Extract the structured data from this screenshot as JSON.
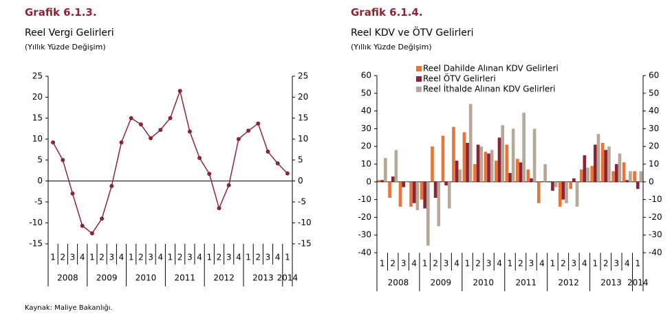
{
  "chart_data": [
    {
      "type": "line",
      "title": "Grafik 6.1.3.",
      "subtitle": "Reel Vergi Gelirleri",
      "note": "(Yıllık Yüzde Değişim)",
      "categories": [
        "1",
        "2",
        "3",
        "4",
        "1",
        "2",
        "3",
        "4",
        "1",
        "2",
        "3",
        "4",
        "1",
        "2",
        "3",
        "4",
        "1",
        "2",
        "3",
        "4",
        "1",
        "2",
        "3",
        "4",
        "1"
      ],
      "groups": [
        "2008",
        "2009",
        "2010",
        "2011",
        "2012",
        "2013",
        "2014"
      ],
      "values": [
        9.2,
        5,
        -3,
        -10.7,
        -12.5,
        -9,
        -1.2,
        9.2,
        15,
        13.5,
        10.2,
        12.2,
        15,
        21.5,
        11.8,
        5.5,
        1.7,
        -6.5,
        -1,
        10,
        12,
        13.7,
        7,
        4.2,
        1.8
      ],
      "color": "#8b2433",
      "ylim": [
        -15,
        25
      ],
      "yticks": [
        -15,
        -10,
        -5,
        0,
        5,
        10,
        15,
        20,
        25
      ],
      "y2lim": [
        -15,
        25
      ],
      "y2ticks": [
        -15,
        -10,
        -5,
        0,
        5,
        10,
        15,
        20,
        25
      ]
    },
    {
      "type": "bar",
      "title": "Grafik 6.1.4.",
      "subtitle": "Reel KDV ve ÖTV Gelirleri",
      "note": "(Yıllık Yüzde Değişim)",
      "categories": [
        "1",
        "2",
        "3",
        "4",
        "1",
        "2",
        "3",
        "4",
        "1",
        "2",
        "3",
        "4",
        "1",
        "2",
        "3",
        "4",
        "1",
        "2",
        "3",
        "4",
        "1",
        "2",
        "3",
        "4",
        "1"
      ],
      "groups": [
        "2008",
        "2009",
        "2010",
        "2011",
        "2012",
        "2013",
        "2014"
      ],
      "series": [
        {
          "name": "Reel Dahilde Alınan KDV Gelirleri",
          "color": "#e8743b",
          "values": [
            1,
            -9,
            -14,
            -14,
            -10,
            20,
            26,
            31,
            28,
            10,
            17,
            12,
            21,
            13,
            7,
            -12,
            0,
            -14,
            -4,
            7,
            9,
            22,
            6,
            11,
            6
          ]
        },
        {
          "name": "Reel ÖTV Gelirleri",
          "color": "#8b2433",
          "values": [
            1,
            3,
            -3,
            -12,
            -15,
            -9,
            -2,
            12,
            22,
            21,
            16,
            25,
            5,
            11,
            2,
            0,
            -5,
            -10,
            2,
            15,
            21,
            18,
            10,
            1,
            -4
          ]
        },
        {
          "name": "Reel İthalde Alınan KDV Gelirleri",
          "color": "#b5a898",
          "values": [
            13.5,
            18,
            0.5,
            -16,
            -36,
            -25,
            -15,
            7,
            44,
            20,
            18,
            32,
            30,
            39,
            30,
            10,
            -3,
            -12,
            -14,
            8,
            27,
            20,
            16,
            6,
            6
          ]
        }
      ],
      "ylim": [
        -40,
        60
      ],
      "yticks": [
        -40,
        -30,
        -20,
        -10,
        0,
        10,
        20,
        30,
        40,
        50,
        60
      ],
      "y2lim": [
        -40,
        60
      ],
      "y2ticks": [
        -40,
        -30,
        -20,
        -10,
        0,
        10,
        20,
        30,
        40,
        50,
        60
      ]
    }
  ],
  "source": "Kaynak: Maliye Bakanlığı."
}
